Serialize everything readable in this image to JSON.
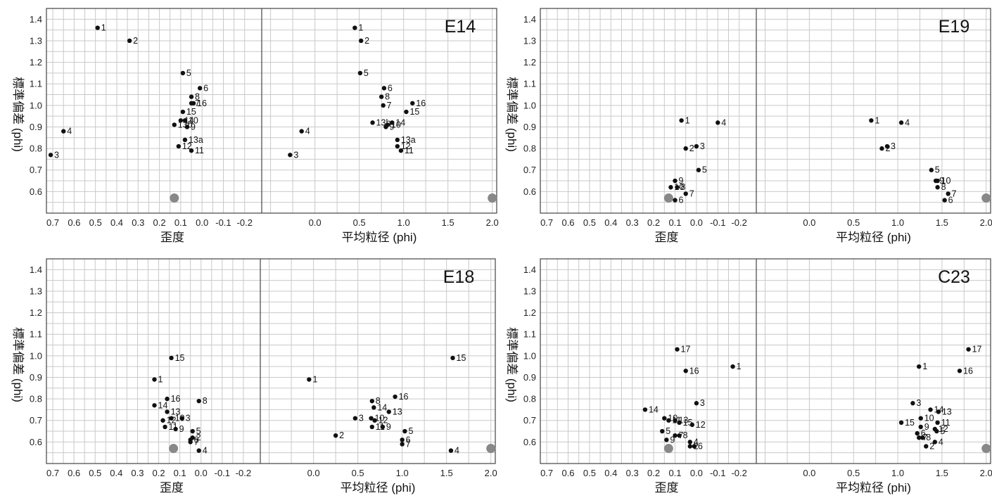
{
  "chart_data": [
    {
      "type": "scatter",
      "title": "E14",
      "ylabel": "標準偏差 (phi)",
      "xlabel_left": "歪度",
      "xlabel_right": "平均粒径 (phi)",
      "ylim": [
        0.5,
        1.45
      ],
      "yticks": [
        "0.6",
        "0.7",
        "0.8",
        "0.9",
        "1.0",
        "1.1",
        "1.2",
        "1.3",
        "1.4"
      ],
      "left_xlim": [
        0.73,
        -0.28
      ],
      "left_xticks": [
        "0.7",
        "0.6",
        "0.5",
        "0.4",
        "0.3",
        "0.2",
        "0.1",
        "0.0",
        "-0.1",
        "-0.2"
      ],
      "right_xlim": [
        -0.6,
        2.05
      ],
      "right_xticks": [
        "0.0",
        "0.5",
        "1.0",
        "1.5",
        "2.0"
      ],
      "reference_left": {
        "x": 0.13,
        "y": 0.57
      },
      "reference_right": {
        "x": 2.0,
        "y": 0.57
      },
      "skewness_points": [
        {
          "label": "1",
          "x": 0.49,
          "y": 1.36
        },
        {
          "label": "2",
          "x": 0.34,
          "y": 1.3
        },
        {
          "label": "3",
          "x": 0.71,
          "y": 0.77
        },
        {
          "label": "4",
          "x": 0.65,
          "y": 0.88
        },
        {
          "label": "5",
          "x": 0.09,
          "y": 1.15
        },
        {
          "label": "6",
          "x": 0.01,
          "y": 1.08
        },
        {
          "label": "7",
          "x": 0.05,
          "y": 1.01
        },
        {
          "label": "8",
          "x": 0.05,
          "y": 1.04
        },
        {
          "label": "9",
          "x": 0.07,
          "y": 0.9
        },
        {
          "label": "10",
          "x": 0.08,
          "y": 0.93
        },
        {
          "label": "11",
          "x": 0.05,
          "y": 0.79
        },
        {
          "label": "12",
          "x": 0.11,
          "y": 0.81
        },
        {
          "label": "13a",
          "x": 0.08,
          "y": 0.84
        },
        {
          "label": "13b",
          "x": 0.13,
          "y": 0.91
        },
        {
          "label": "14",
          "x": 0.1,
          "y": 0.93
        },
        {
          "label": "15",
          "x": 0.09,
          "y": 0.97
        },
        {
          "label": "16",
          "x": 0.04,
          "y": 1.01
        }
      ],
      "mean_points": [
        {
          "label": "1",
          "x": 0.45,
          "y": 1.36
        },
        {
          "label": "2",
          "x": 0.52,
          "y": 1.3
        },
        {
          "label": "3",
          "x": -0.28,
          "y": 0.77
        },
        {
          "label": "4",
          "x": -0.15,
          "y": 0.88
        },
        {
          "label": "5",
          "x": 0.51,
          "y": 1.15
        },
        {
          "label": "6",
          "x": 0.78,
          "y": 1.08
        },
        {
          "label": "7",
          "x": 0.77,
          "y": 1.0
        },
        {
          "label": "8",
          "x": 0.75,
          "y": 1.04
        },
        {
          "label": "9",
          "x": 0.8,
          "y": 0.9
        },
        {
          "label": "10",
          "x": 0.82,
          "y": 0.91
        },
        {
          "label": "11",
          "x": 0.97,
          "y": 0.79
        },
        {
          "label": "12",
          "x": 0.93,
          "y": 0.81
        },
        {
          "label": "13a",
          "x": 0.93,
          "y": 0.84
        },
        {
          "label": "13b",
          "x": 0.65,
          "y": 0.92
        },
        {
          "label": "14",
          "x": 0.87,
          "y": 0.92
        },
        {
          "label": "15",
          "x": 1.03,
          "y": 0.97
        },
        {
          "label": "16",
          "x": 1.1,
          "y": 1.01
        }
      ]
    },
    {
      "type": "scatter",
      "title": "E19",
      "ylabel": "標準偏差 (phi)",
      "xlabel_left": "歪度",
      "xlabel_right": "平均粒径 (phi)",
      "ylim": [
        0.5,
        1.45
      ],
      "yticks": [
        "0.6",
        "0.7",
        "0.8",
        "0.9",
        "1.0",
        "1.1",
        "1.2",
        "1.3",
        "1.4"
      ],
      "left_xlim": [
        0.73,
        -0.28
      ],
      "left_xticks": [
        "0.7",
        "0.6",
        "0.5",
        "0.4",
        "0.3",
        "0.2",
        "0.1",
        "0.0",
        "-0.1",
        "-0.2"
      ],
      "right_xlim": [
        -0.6,
        2.05
      ],
      "right_xticks": [
        "0.0",
        "0.5",
        "1.0",
        "1.5",
        "2.0"
      ],
      "reference_left": {
        "x": 0.13,
        "y": 0.57
      },
      "reference_right": {
        "x": 2.0,
        "y": 0.57
      },
      "skewness_points": [
        {
          "label": "1",
          "x": 0.07,
          "y": 0.93
        },
        {
          "label": "2",
          "x": 0.05,
          "y": 0.8
        },
        {
          "label": "3",
          "x": 0.0,
          "y": 0.81
        },
        {
          "label": "4",
          "x": -0.1,
          "y": 0.92
        },
        {
          "label": "5",
          "x": -0.01,
          "y": 0.7
        },
        {
          "label": "6",
          "x": 0.1,
          "y": 0.56
        },
        {
          "label": "7",
          "x": 0.05,
          "y": 0.59
        },
        {
          "label": "8",
          "x": 0.09,
          "y": 0.62
        },
        {
          "label": "9",
          "x": 0.1,
          "y": 0.65
        },
        {
          "label": "10",
          "x": 0.12,
          "y": 0.62
        }
      ],
      "mean_points": [
        {
          "label": "1",
          "x": 0.7,
          "y": 0.93
        },
        {
          "label": "2",
          "x": 0.82,
          "y": 0.8
        },
        {
          "label": "3",
          "x": 0.88,
          "y": 0.81
        },
        {
          "label": "4",
          "x": 1.04,
          "y": 0.92
        },
        {
          "label": "5",
          "x": 1.38,
          "y": 0.7
        },
        {
          "label": "6",
          "x": 1.53,
          "y": 0.56
        },
        {
          "label": "7",
          "x": 1.57,
          "y": 0.59
        },
        {
          "label": "8",
          "x": 1.45,
          "y": 0.62
        },
        {
          "label": "9",
          "x": 1.43,
          "y": 0.65
        },
        {
          "label": "10",
          "x": 1.45,
          "y": 0.65
        }
      ]
    },
    {
      "type": "scatter",
      "title": "E18",
      "ylabel": "標準偏差 (phi)",
      "xlabel_left": "歪度",
      "xlabel_right": "平均粒径 (phi)",
      "ylim": [
        0.5,
        1.45
      ],
      "yticks": [
        "0.6",
        "0.7",
        "0.8",
        "0.9",
        "1.0",
        "1.1",
        "1.2",
        "1.3",
        "1.4"
      ],
      "left_xlim": [
        0.73,
        -0.28
      ],
      "left_xticks": [
        "0.7",
        "0.6",
        "0.5",
        "0.4",
        "0.3",
        "0.2",
        "0.1",
        "0.0",
        "-0.1",
        "-0.2"
      ],
      "right_xlim": [
        -0.6,
        2.05
      ],
      "right_xticks": [
        "0.0",
        "0.5",
        "1.0",
        "1.5",
        "2.0"
      ],
      "reference_left": {
        "x": 0.13,
        "y": 0.57
      },
      "reference_right": {
        "x": 2.0,
        "y": 0.57
      },
      "skewness_points": [
        {
          "label": "1",
          "x": 0.22,
          "y": 0.89
        },
        {
          "label": "2",
          "x": 0.04,
          "y": 0.62
        },
        {
          "label": "3",
          "x": 0.09,
          "y": 0.71
        },
        {
          "label": "4",
          "x": 0.01,
          "y": 0.56
        },
        {
          "label": "5",
          "x": 0.04,
          "y": 0.65
        },
        {
          "label": "6",
          "x": 0.05,
          "y": 0.61
        },
        {
          "label": "7",
          "x": 0.05,
          "y": 0.6
        },
        {
          "label": "8",
          "x": 0.01,
          "y": 0.79
        },
        {
          "label": "9",
          "x": 0.12,
          "y": 0.66
        },
        {
          "label": "10",
          "x": 0.14,
          "y": 0.71
        },
        {
          "label": "11",
          "x": 0.17,
          "y": 0.67
        },
        {
          "label": "12",
          "x": 0.18,
          "y": 0.7
        },
        {
          "label": "13",
          "x": 0.16,
          "y": 0.74
        },
        {
          "label": "14",
          "x": 0.22,
          "y": 0.77
        },
        {
          "label": "15",
          "x": 0.14,
          "y": 0.99
        },
        {
          "label": "16",
          "x": 0.16,
          "y": 0.8
        }
      ],
      "mean_points": [
        {
          "label": "1",
          "x": -0.05,
          "y": 0.89
        },
        {
          "label": "2",
          "x": 0.25,
          "y": 0.63
        },
        {
          "label": "3",
          "x": 0.47,
          "y": 0.71
        },
        {
          "label": "4",
          "x": 1.55,
          "y": 0.56
        },
        {
          "label": "5",
          "x": 1.03,
          "y": 0.65
        },
        {
          "label": "6",
          "x": 1.0,
          "y": 0.61
        },
        {
          "label": "7",
          "x": 1.0,
          "y": 0.59
        },
        {
          "label": "8",
          "x": 0.66,
          "y": 0.79
        },
        {
          "label": "9",
          "x": 0.78,
          "y": 0.67
        },
        {
          "label": "10",
          "x": 0.65,
          "y": 0.71
        },
        {
          "label": "11",
          "x": 0.66,
          "y": 0.67
        },
        {
          "label": "12",
          "x": 0.69,
          "y": 0.7
        },
        {
          "label": "13",
          "x": 0.85,
          "y": 0.74
        },
        {
          "label": "14",
          "x": 0.68,
          "y": 0.76
        },
        {
          "label": "15",
          "x": 1.57,
          "y": 0.99
        },
        {
          "label": "16",
          "x": 0.92,
          "y": 0.81
        }
      ]
    },
    {
      "type": "scatter",
      "title": "C23",
      "ylabel": "標準偏差 (phi)",
      "xlabel_left": "歪度",
      "xlabel_right": "平均粒径 (phi)",
      "ylim": [
        0.5,
        1.45
      ],
      "yticks": [
        "0.6",
        "0.7",
        "0.8",
        "0.9",
        "1.0",
        "1.1",
        "1.2",
        "1.3",
        "1.4"
      ],
      "left_xlim": [
        0.73,
        -0.28
      ],
      "left_xticks": [
        "0.7",
        "0.6",
        "0.5",
        "0.4",
        "0.3",
        "0.2",
        "0.1",
        "0.0",
        "-0.1",
        "-0.2"
      ],
      "right_xlim": [
        -0.6,
        2.05
      ],
      "right_xticks": [
        "0.0",
        "0.5",
        "1.0",
        "1.5",
        "2.0"
      ],
      "reference_left": {
        "x": 0.13,
        "y": 0.57
      },
      "reference_right": {
        "x": 2.0,
        "y": 0.57
      },
      "skewness_points": [
        {
          "label": "1",
          "x": -0.17,
          "y": 0.95
        },
        {
          "label": "2",
          "x": 0.03,
          "y": 0.58
        },
        {
          "label": "3",
          "x": 0.0,
          "y": 0.78
        },
        {
          "label": "4",
          "x": 0.03,
          "y": 0.6
        },
        {
          "label": "5",
          "x": 0.16,
          "y": 0.65
        },
        {
          "label": "6",
          "x": 0.01,
          "y": 0.58
        },
        {
          "label": "7",
          "x": 0.1,
          "y": 0.63
        },
        {
          "label": "8",
          "x": 0.08,
          "y": 0.63
        },
        {
          "label": "9",
          "x": 0.14,
          "y": 0.61
        },
        {
          "label": "10",
          "x": 0.15,
          "y": 0.71
        },
        {
          "label": "11",
          "x": 0.13,
          "y": 0.7
        },
        {
          "label": "12",
          "x": 0.02,
          "y": 0.68
        },
        {
          "label": "13",
          "x": 0.1,
          "y": 0.7
        },
        {
          "label": "14",
          "x": 0.24,
          "y": 0.75
        },
        {
          "label": "15",
          "x": 0.08,
          "y": 0.69
        },
        {
          "label": "16",
          "x": 0.05,
          "y": 0.93
        },
        {
          "label": "17",
          "x": 0.09,
          "y": 1.03
        }
      ],
      "mean_points": [
        {
          "label": "1",
          "x": 1.24,
          "y": 0.95
        },
        {
          "label": "2",
          "x": 1.32,
          "y": 0.58
        },
        {
          "label": "3",
          "x": 1.17,
          "y": 0.78
        },
        {
          "label": "4",
          "x": 1.42,
          "y": 0.6
        },
        {
          "label": "5",
          "x": 1.44,
          "y": 0.65
        },
        {
          "label": "6",
          "x": 1.22,
          "y": 0.64
        },
        {
          "label": "7",
          "x": 1.24,
          "y": 0.62
        },
        {
          "label": "8",
          "x": 1.28,
          "y": 0.62
        },
        {
          "label": "9",
          "x": 1.26,
          "y": 0.67
        },
        {
          "label": "10",
          "x": 1.26,
          "y": 0.71
        },
        {
          "label": "11",
          "x": 1.45,
          "y": 0.69
        },
        {
          "label": "12",
          "x": 1.42,
          "y": 0.66
        },
        {
          "label": "13",
          "x": 1.46,
          "y": 0.74
        },
        {
          "label": "14",
          "x": 1.37,
          "y": 0.75
        },
        {
          "label": "15",
          "x": 1.04,
          "y": 0.69
        },
        {
          "label": "16",
          "x": 1.7,
          "y": 0.93
        },
        {
          "label": "17",
          "x": 1.8,
          "y": 1.03
        }
      ]
    }
  ]
}
